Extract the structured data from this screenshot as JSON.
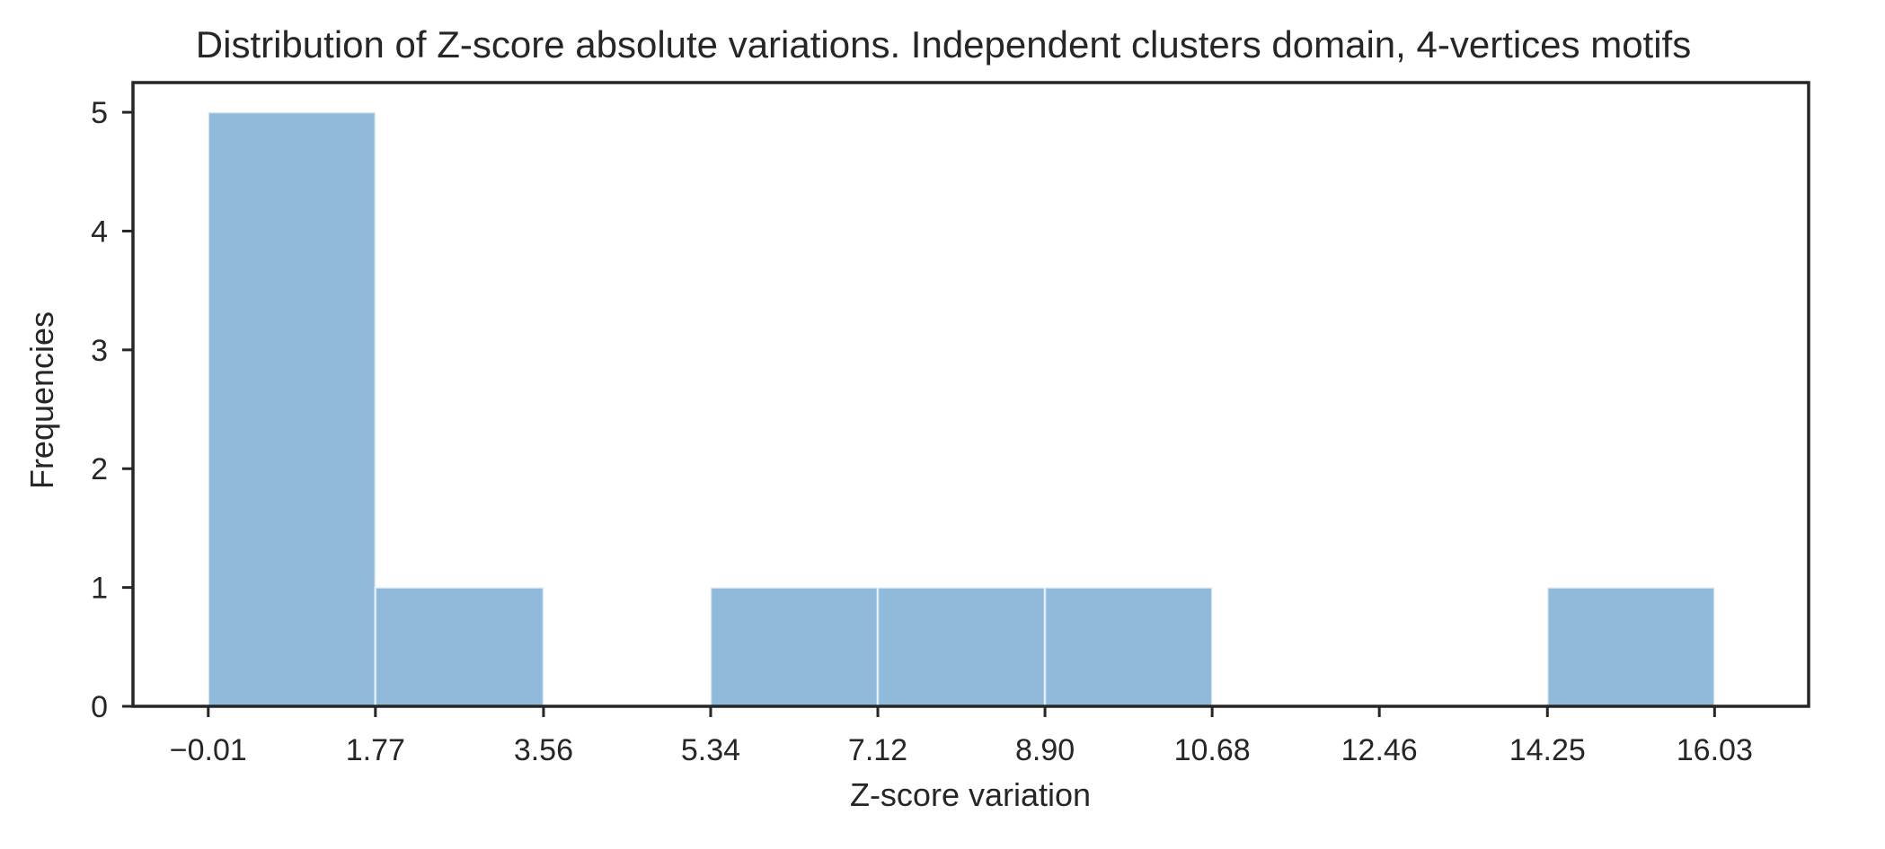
{
  "chart_data": {
    "type": "bar",
    "title": "Distribution of Z-score absolute variations. Independent clusters domain, 4-vertices motifs",
    "xlabel": "Z-score variation",
    "ylabel": "Frequencies",
    "bin_edges": [
      -0.01,
      1.77,
      3.56,
      5.34,
      7.12,
      8.9,
      10.68,
      12.46,
      14.25,
      16.03
    ],
    "x_tick_labels": [
      "−0.01",
      "1.77",
      "3.56",
      "5.34",
      "7.12",
      "8.90",
      "10.68",
      "12.46",
      "14.25",
      "16.03"
    ],
    "counts": [
      5,
      1,
      0,
      1,
      1,
      1,
      0,
      0,
      1
    ],
    "y_ticks": [
      0,
      1,
      2,
      3,
      4,
      5
    ],
    "xlim": [
      -0.8115,
      17.0315
    ],
    "ylim": [
      0,
      5.25
    ],
    "bar_color": "#8fbad9",
    "grid": false
  }
}
